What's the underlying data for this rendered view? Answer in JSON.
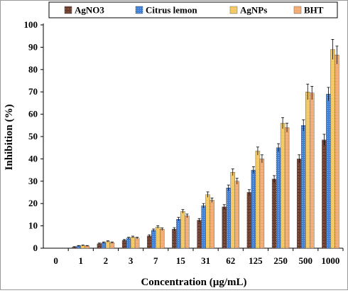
{
  "chart_data": {
    "type": "bar",
    "title": "",
    "xlabel": "Concentration (µg/mL)",
    "ylabel": "Inhibition (%)",
    "ylim": [
      0,
      100
    ],
    "yticks": [
      "0",
      "10",
      "20",
      "30",
      "40",
      "50",
      "60",
      "70",
      "80",
      "90",
      "100"
    ],
    "categories": [
      "0",
      "1",
      "2",
      "3",
      "7",
      "15",
      "31",
      "62",
      "125",
      "250",
      "500",
      "1000"
    ],
    "legend_position": "top",
    "grid": false,
    "series": [
      {
        "name": "AgNO3",
        "color": "#5a2414",
        "pattern": "brick",
        "values": [
          0,
          0.5,
          2,
          3.5,
          5.5,
          8.5,
          12.5,
          18.5,
          25,
          31,
          40,
          48.5
        ],
        "errors": [
          0,
          0.2,
          0.3,
          0.4,
          0.5,
          0.7,
          0.8,
          1.0,
          1.2,
          1.5,
          1.8,
          2.5
        ]
      },
      {
        "name": "Citrus lemon",
        "color": "#3f7fd6",
        "pattern": "dots",
        "values": [
          0,
          1,
          2.5,
          4.5,
          8,
          13,
          19,
          27,
          35,
          45,
          55,
          69
        ],
        "errors": [
          0,
          0.2,
          0.3,
          0.4,
          0.6,
          0.8,
          1.0,
          1.3,
          1.5,
          1.8,
          2.5,
          3.0
        ]
      },
      {
        "name": "AgNPs",
        "color": "#f2c14e",
        "pattern": "brick",
        "values": [
          0,
          1.2,
          3,
          5,
          9.5,
          16.5,
          24,
          34,
          43.5,
          56,
          70,
          89
        ],
        "errors": [
          0,
          0.2,
          0.3,
          0.4,
          0.6,
          0.8,
          1.2,
          1.5,
          1.8,
          2.5,
          3.5,
          4.5
        ]
      },
      {
        "name": "BHT",
        "color": "#f0a060",
        "pattern": "brick",
        "values": [
          0,
          1,
          2.5,
          4.5,
          8.5,
          14.5,
          21.5,
          30,
          40,
          54,
          69.5,
          86.5
        ],
        "errors": [
          0,
          0.2,
          0.3,
          0.4,
          0.6,
          0.8,
          1.0,
          1.3,
          1.8,
          2.0,
          3.0,
          4.0
        ]
      }
    ]
  }
}
